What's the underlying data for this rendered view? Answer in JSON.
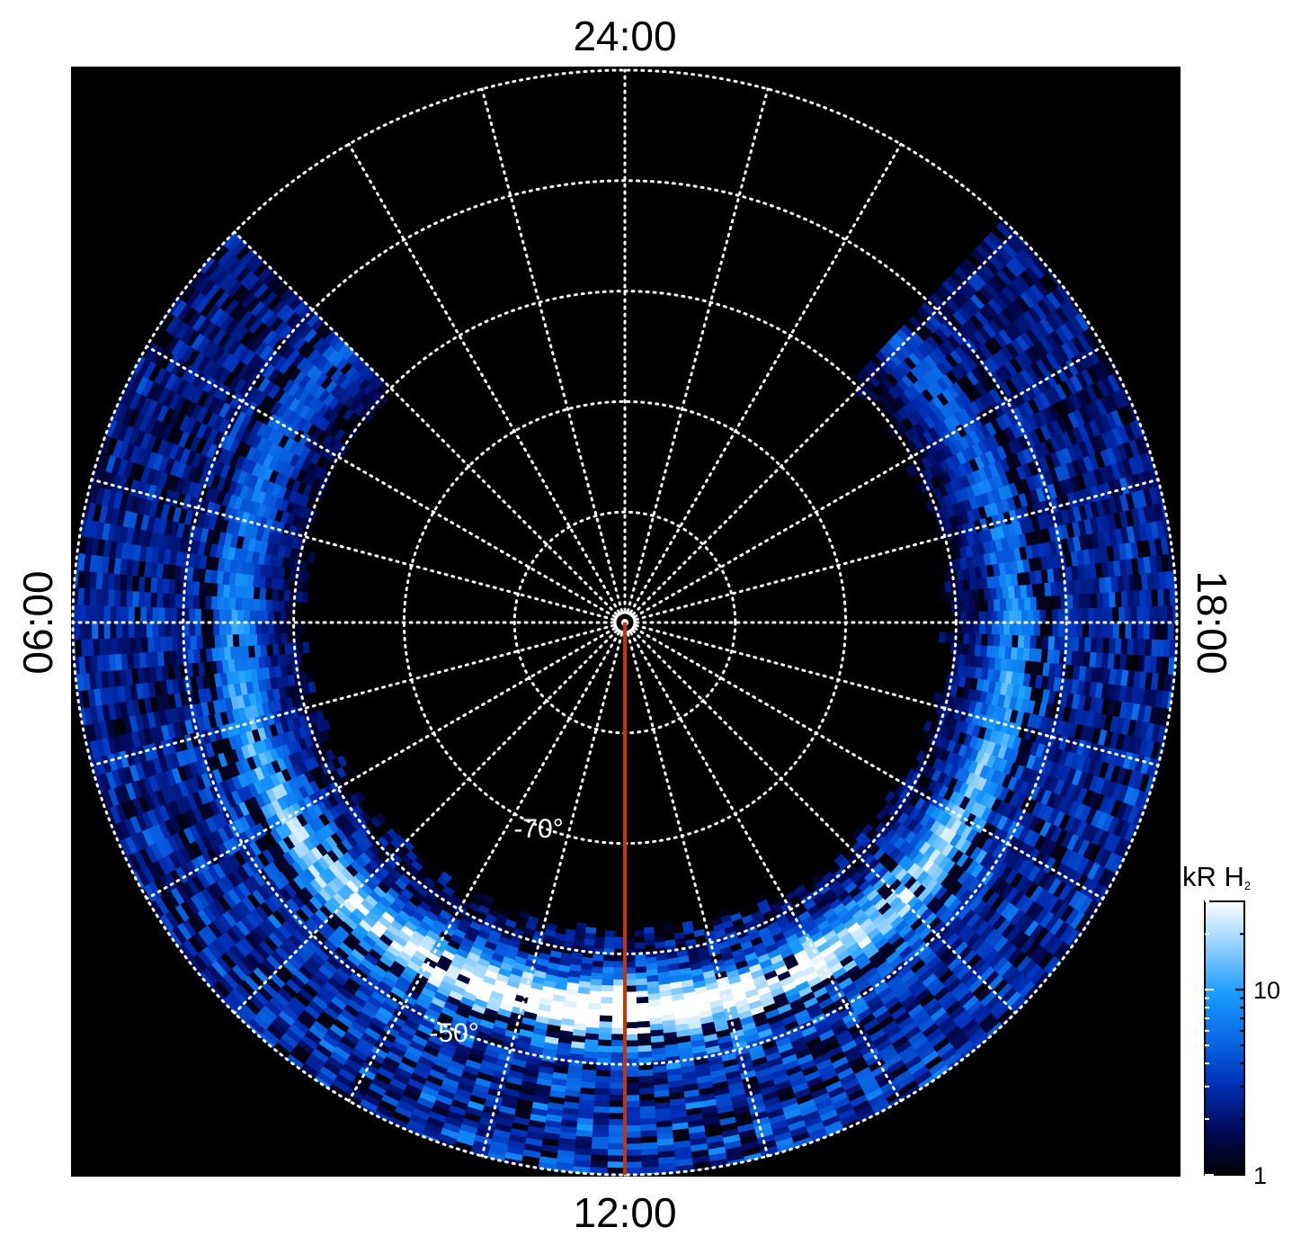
{
  "chart_data": {
    "type": "heatmap",
    "projection": "polar",
    "hemisphere": "south",
    "title": "",
    "local_time_labels": {
      "top": "24:00",
      "bottom": "12:00",
      "left": "06:00",
      "right": "18:00"
    },
    "latitude_labels": [
      {
        "value": -70,
        "text": "-70°"
      },
      {
        "value": -50,
        "text": "-50°"
      }
    ],
    "latitude_circles": [
      -90,
      -80,
      -70,
      -60,
      -50,
      -40
    ],
    "latitude_range": [
      -90,
      -40
    ],
    "meridian_step_hours": 1,
    "grid": true,
    "grid_style": "dotted",
    "grid_color": "#ffffff",
    "background_color": "#000000",
    "highlight_meridian": {
      "local_time": "12:00",
      "lat_range": [
        -90,
        -40
      ],
      "color": "#cc3300"
    },
    "emission_band": {
      "local_time_range": [
        "03:00",
        "21:00"
      ],
      "lat_range": [
        -60,
        -40
      ],
      "peak_lat": -55,
      "peak_local_time": "12:00",
      "intensity_unit": "kR"
    },
    "colorbar": {
      "label_main": "kR H",
      "label_sub": "2",
      "scale": "log",
      "range": [
        1,
        30
      ],
      "ticks": [
        {
          "value": 1,
          "text": "1"
        },
        {
          "value": 10,
          "text": "10"
        }
      ],
      "colors": [
        "#000000",
        "#000a5a",
        "#0030b8",
        "#0a6ae8",
        "#1a9cff",
        "#8fd0ff",
        "#ffffff"
      ]
    }
  }
}
